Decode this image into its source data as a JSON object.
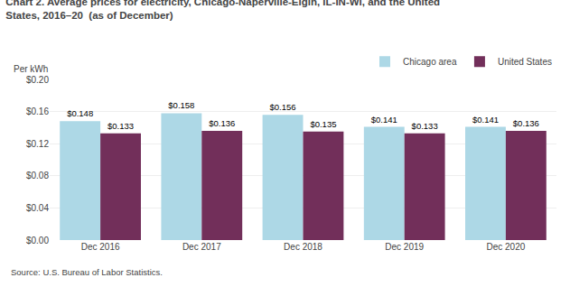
{
  "chart_data": {
    "type": "bar",
    "title": "Chart 2. Average prices for electricity, Chicago-Naperville-Elgin, IL-IN-WI, and the United\nStates, 2016–20  (as of December)",
    "ylabel": "Per kWh",
    "annotations": [
      "Source: U.S. Bureau of Labor Statistics."
    ],
    "categories": [
      "Dec 2016",
      "Dec 2017",
      "Dec 2018",
      "Dec 2019",
      "Dec 2020"
    ],
    "series": [
      {
        "name": "Chicago area",
        "color": "#ADD8E6",
        "values": [
          0.148,
          0.158,
          0.156,
          0.141,
          0.141
        ],
        "value_labels": [
          "$0.148",
          "$0.158",
          "$0.156",
          "$0.141",
          "$0.141"
        ]
      },
      {
        "name": "United States",
        "color": "#722F5A",
        "values": [
          0.133,
          0.136,
          0.135,
          0.133,
          0.136
        ],
        "value_labels": [
          "$0.133",
          "$0.136",
          "$0.135",
          "$0.133",
          "$0.136"
        ]
      }
    ],
    "ylim": [
      0,
      0.2
    ],
    "yticks": [
      {
        "value": 0,
        "label": "$0.00"
      },
      {
        "value": 0.04,
        "label": "$0.04"
      },
      {
        "value": 0.08,
        "label": "$0.08"
      },
      {
        "value": 0.12,
        "label": "$0.12"
      },
      {
        "value": 0.16,
        "label": "$0.16"
      },
      {
        "value": 0.2,
        "label": "$0.20"
      }
    ],
    "grid": true,
    "legend": "upper right",
    "data_labels": true
  }
}
